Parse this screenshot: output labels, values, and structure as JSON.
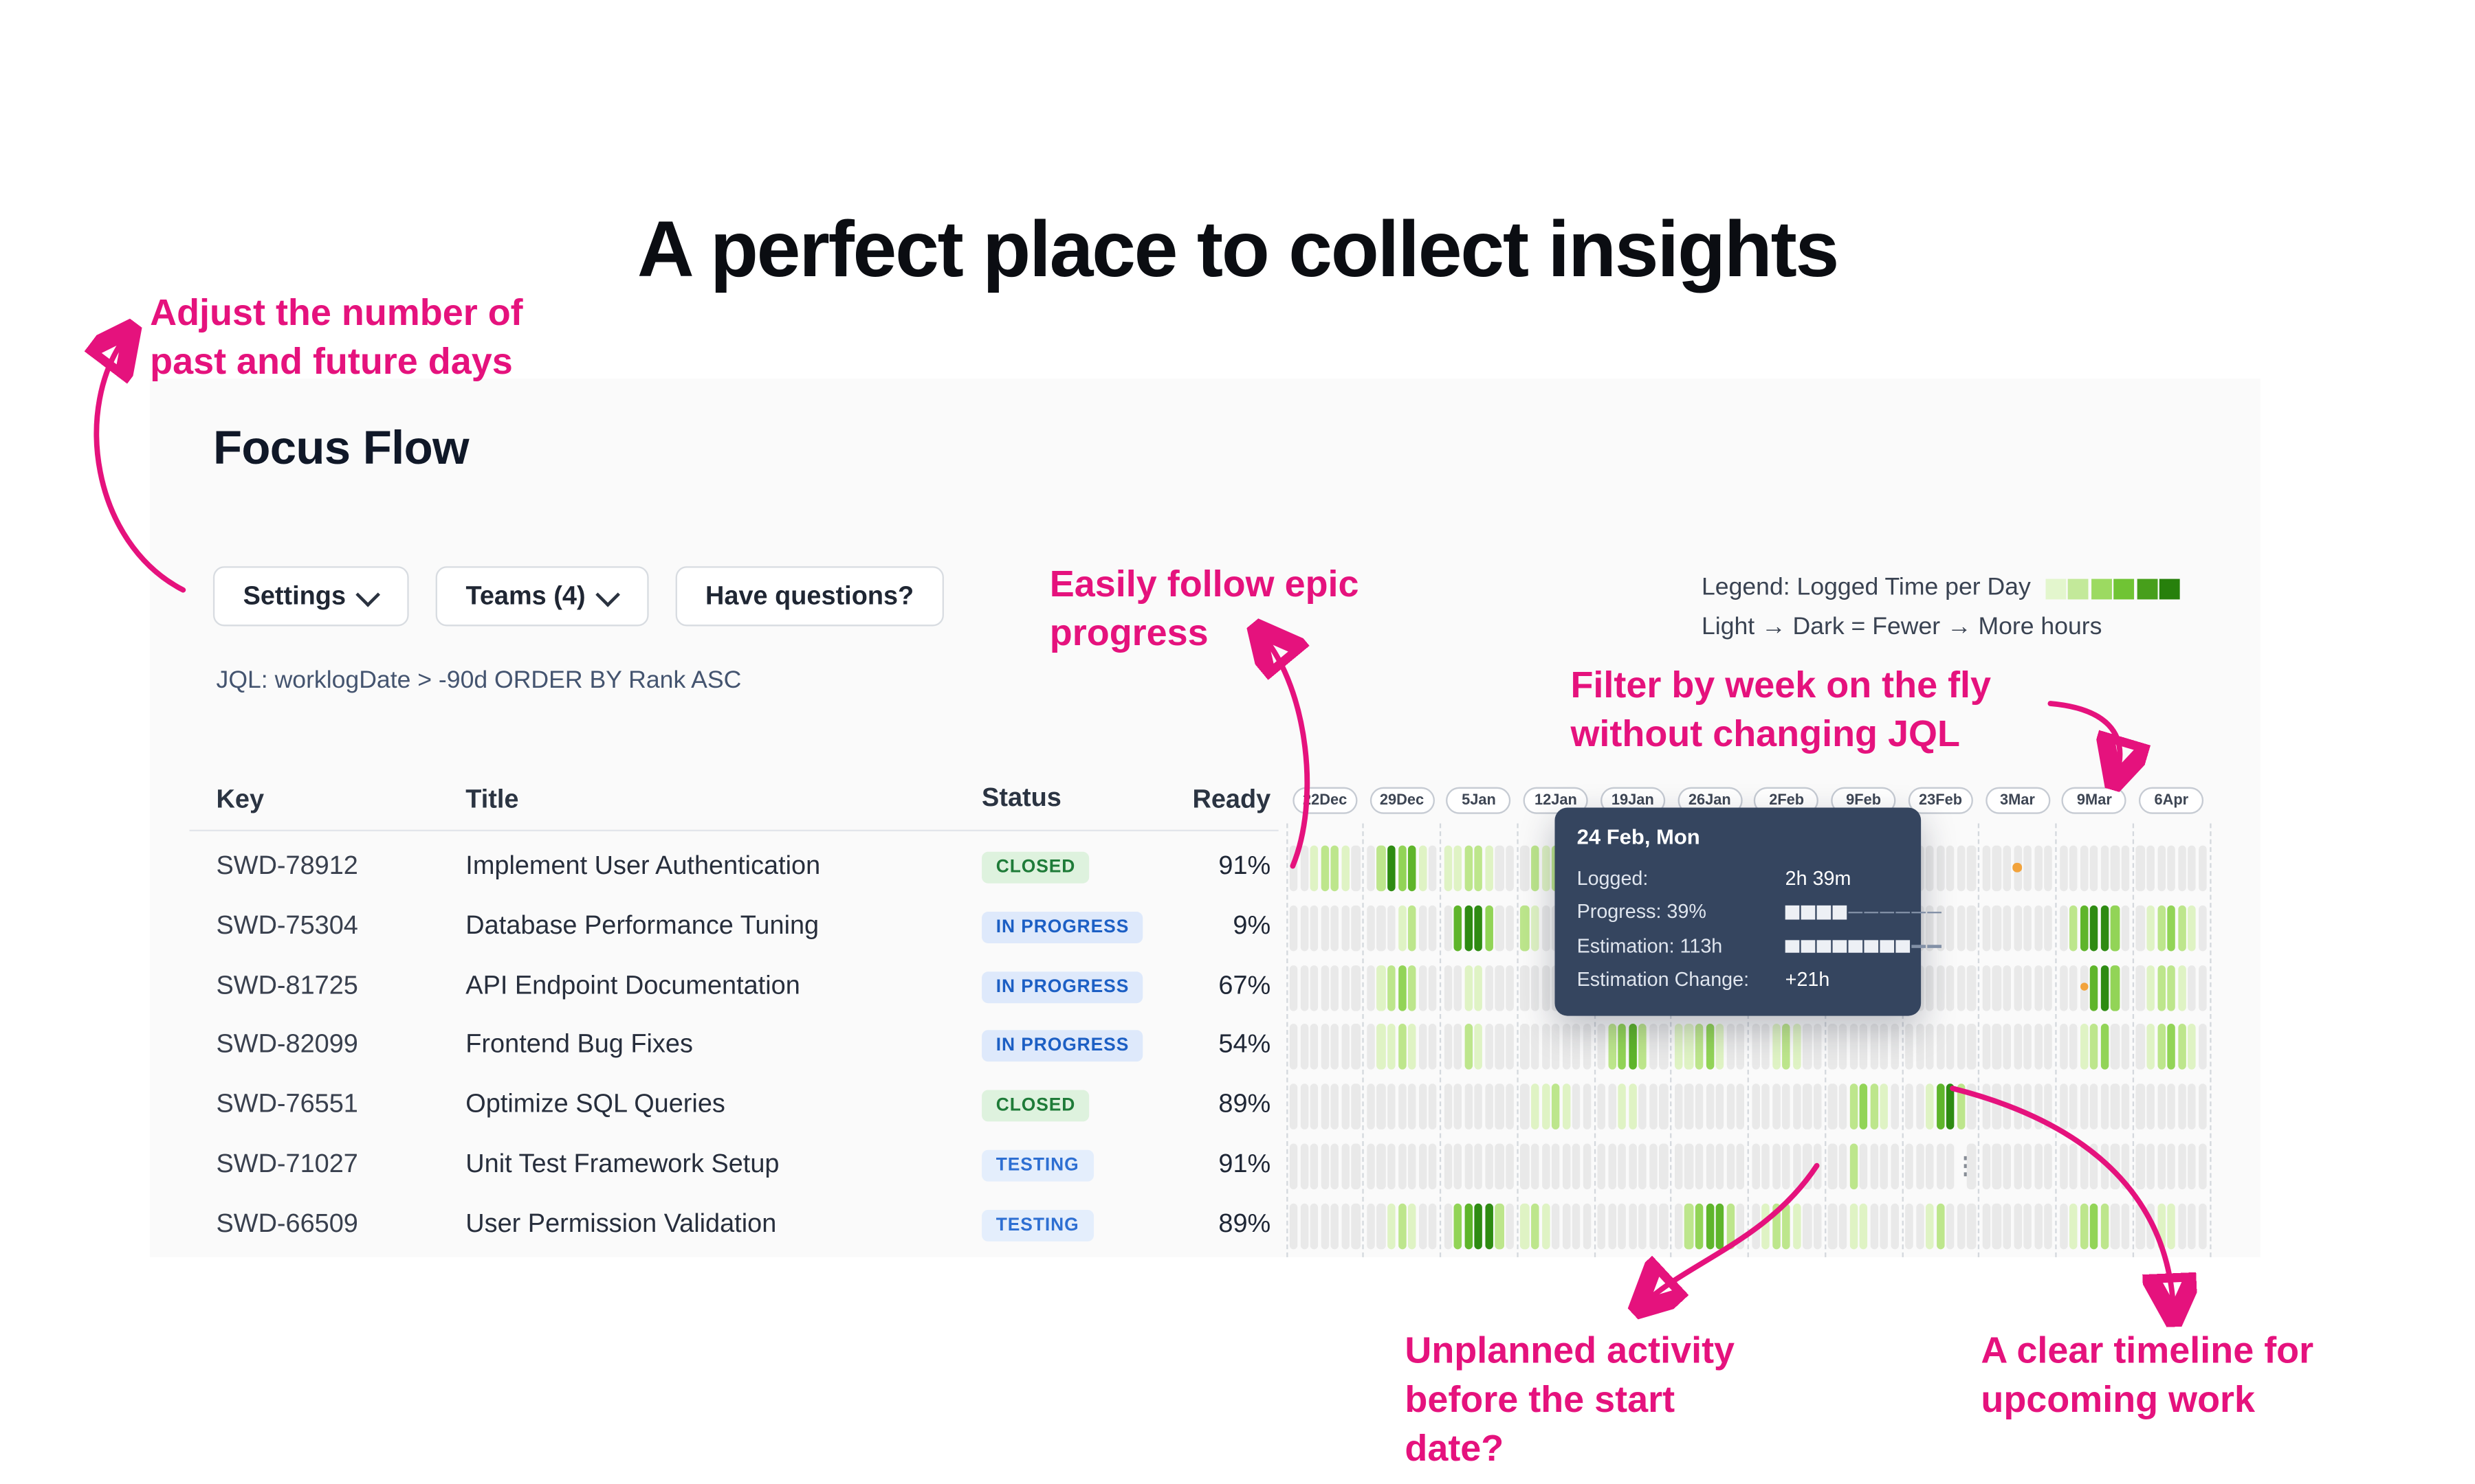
{
  "page": {
    "title": "A perfect place to collect insights"
  },
  "annotations": {
    "adjust": "Adjust the number of\npast and future days",
    "epic": "Easily follow epic\nprogress",
    "filter": "Filter by week on the fly\nwithout changing JQL",
    "unplanned": "Unplanned activity\nbefore the start\ndate?",
    "timeline": "A clear timeline for\nupcoming work"
  },
  "app": {
    "title": "Focus Flow",
    "buttons": {
      "settings": "Settings",
      "teams": "Teams (4)",
      "questions": "Have questions?"
    },
    "jql": "JQL: worklogDate > -90d ORDER BY Rank ASC",
    "legend": {
      "label": "Legend: Logged Time per Day",
      "sub": "Light → Dark = Fewer → More hours",
      "colors": [
        "#E3F6CD",
        "#C3E99A",
        "#9CDA61",
        "#70C434",
        "#479F1B",
        "#27800C"
      ]
    },
    "table": {
      "headers": [
        "Key",
        "Title",
        "Status",
        "Ready"
      ],
      "rows": [
        {
          "key": "SWD-78912",
          "title": "Implement User Authentication",
          "status": "CLOSED",
          "status_type": "closed",
          "ready": "91%",
          "heat": [
            "0012210",
            "0253410",
            "1122100",
            "0212200",
            "0021100",
            "0011000",
            "0001100",
            "0000000",
            "0000000",
            "000o000",
            "0000000",
            "0000000"
          ]
        },
        {
          "key": "SWD-75304",
          "title": "Database Performance Tuning",
          "status": "IN PROGRESS",
          "status_type": "inprogress",
          "ready": "9%",
          "heat": [
            "0000000",
            "0001200",
            "0455300",
            "2100000",
            "0000000",
            "0012100",
            "0000000",
            "0000000",
            "0000000",
            "0000000",
            "0245530",
            "0123210"
          ]
        },
        {
          "key": "SWD-81725",
          "title": "API Endpoint Documentation",
          "status": "IN PROGRESS",
          "status_type": "inprogress",
          "ready": "67%",
          "heat": [
            "0000000",
            "0123200",
            "0011000",
            "0000000",
            "0000000",
            "0000000",
            "0000000",
            "0000000",
            "0000000",
            "0000000",
            "00o4530",
            "0122100"
          ]
        },
        {
          "key": "SWD-82099",
          "title": "Frontend Bug Fixes",
          "status": "IN PROGRESS",
          "status_type": "inprogress",
          "ready": "54%",
          "heat": [
            "0000000",
            "0112100",
            "0021000",
            "0000000",
            "0234200",
            "1123100",
            "0012100",
            "0000000",
            "0000000",
            "0000000",
            "0012300",
            "0123210"
          ]
        },
        {
          "key": "SWD-76551",
          "title": "Optimize SQL Queries",
          "status": "CLOSED",
          "status_type": "closed",
          "ready": "89%",
          "heat": [
            "0000000",
            "0000000",
            "0000000",
            "0112100",
            "0011000",
            "0000000",
            "0000000",
            "0023210",
            "0014520",
            "0000000",
            "0000000",
            "0000000"
          ]
        },
        {
          "key": "SWD-71027",
          "title": "Unit Test Framework Setup",
          "status": "TESTING",
          "status_type": "testing",
          "ready": "91%",
          "heat": [
            "0000000",
            "0000000",
            "0000000",
            "0000000",
            "0000000",
            "0000000",
            "0000000",
            "0020000",
            "00000d0",
            "0000000",
            "0000000",
            "0000000"
          ]
        },
        {
          "key": "SWD-66509",
          "title": "User Permission Validation",
          "status": "TESTING",
          "status_type": "testing",
          "ready": "89%",
          "heat": [
            "0000000",
            "0012100",
            "0345520",
            "1210000",
            "0000000",
            "0234420",
            "0122100",
            "0011000",
            "0012000",
            "0000000",
            "0123200",
            "0011000"
          ]
        }
      ]
    },
    "timeline": {
      "weeks": [
        "22Dec",
        "29Dec",
        "5Jan",
        "12Jan",
        "19Jan",
        "26Jan",
        "2Feb",
        "9Feb",
        "23Feb",
        "3Mar",
        "9Mar",
        "6Apr"
      ]
    }
  },
  "tooltip": {
    "date": "24 Feb, Mon",
    "rows": [
      {
        "label": "Logged:",
        "value": "2h 39m"
      },
      {
        "label": "Progress: 39%",
        "bar": {
          "filled": 4,
          "total": 10
        }
      },
      {
        "label": "Estimation: 113h",
        "bar": {
          "filled": 8,
          "total": 10
        }
      },
      {
        "label": "Estimation Change:",
        "value": "+21h"
      }
    ]
  },
  "colors": {
    "pink": "#E5127D",
    "heat_empty": "#E9E9E9",
    "heat_levels": [
      "#DFF3C4",
      "#BDE68C",
      "#92D457",
      "#5FB52B",
      "#2E8B12"
    ],
    "marker_orange": "#F2A33C",
    "status": {
      "closed": {
        "bg": "#DEF2DE",
        "fg": "#1E7B38"
      },
      "inprogress": {
        "bg": "#DEE9FB",
        "fg": "#1C5FC4"
      },
      "testing": {
        "bg": "#E4EEFC",
        "fg": "#2E6FD2"
      }
    }
  }
}
